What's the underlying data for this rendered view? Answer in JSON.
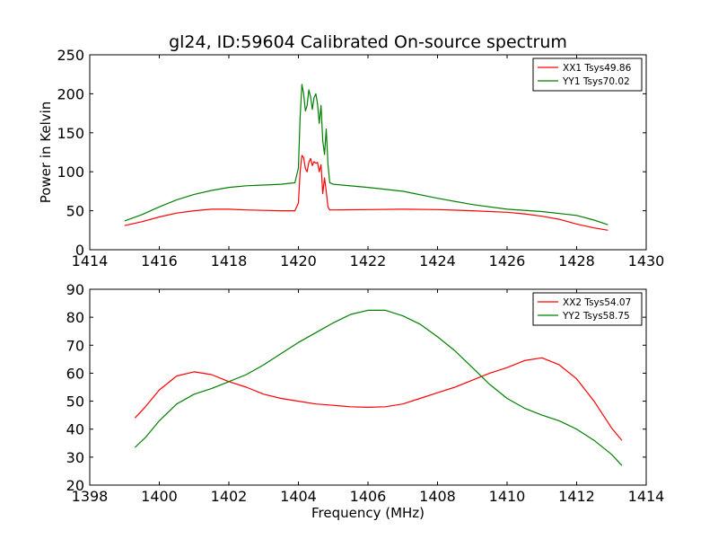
{
  "figure": {
    "title": "gl24, ID:59604 Calibrated On-source spectrum"
  },
  "chart_data": [
    {
      "type": "line",
      "title": "gl24, ID:59604 Calibrated On-source spectrum",
      "xlabel": "",
      "ylabel": "Power in Kelvin",
      "xlim": [
        1414,
        1430
      ],
      "ylim": [
        0,
        250
      ],
      "xticks": [
        1414,
        1416,
        1418,
        1420,
        1422,
        1424,
        1426,
        1428,
        1430
      ],
      "yticks": [
        0,
        50,
        100,
        150,
        200,
        250
      ],
      "legend_position": "top-right",
      "grid": false,
      "series": [
        {
          "name": "XX1 Tsys49.86",
          "color": "#ff0000",
          "points": [
            [
              1415,
              31
            ],
            [
              1415.5,
              36
            ],
            [
              1416,
              42
            ],
            [
              1416.5,
              47
            ],
            [
              1417,
              50
            ],
            [
              1417.5,
              52
            ],
            [
              1418,
              52
            ],
            [
              1418.5,
              51
            ],
            [
              1419,
              50.5
            ],
            [
              1419.5,
              50
            ],
            [
              1419.9,
              50
            ],
            [
              1420.0,
              60
            ],
            [
              1420.05,
              100
            ],
            [
              1420.1,
              121
            ],
            [
              1420.15,
              118
            ],
            [
              1420.2,
              104
            ],
            [
              1420.25,
              100
            ],
            [
              1420.3,
              112
            ],
            [
              1420.35,
              117
            ],
            [
              1420.4,
              108
            ],
            [
              1420.45,
              113
            ],
            [
              1420.5,
              111
            ],
            [
              1420.55,
              112
            ],
            [
              1420.6,
              100
            ],
            [
              1420.65,
              109
            ],
            [
              1420.7,
              72
            ],
            [
              1420.75,
              92
            ],
            [
              1420.8,
              75
            ],
            [
              1420.85,
              55
            ],
            [
              1420.9,
              51
            ],
            [
              1421,
              51
            ],
            [
              1422,
              51.5
            ],
            [
              1423,
              52
            ],
            [
              1424,
              51.5
            ],
            [
              1425,
              50
            ],
            [
              1426,
              48
            ],
            [
              1426.5,
              46
            ],
            [
              1427,
              43
            ],
            [
              1427.5,
              39
            ],
            [
              1428,
              33
            ],
            [
              1428.5,
              28
            ],
            [
              1428.9,
              25
            ]
          ]
        },
        {
          "name": "YY1 Tsys70.02",
          "color": "#008000",
          "points": [
            [
              1415,
              37
            ],
            [
              1415.5,
              45
            ],
            [
              1416,
              55
            ],
            [
              1416.5,
              64
            ],
            [
              1417,
              71
            ],
            [
              1417.5,
              76
            ],
            [
              1418,
              80
            ],
            [
              1418.5,
              82
            ],
            [
              1419,
              83
            ],
            [
              1419.5,
              84
            ],
            [
              1419.9,
              86
            ],
            [
              1420.0,
              105
            ],
            [
              1420.05,
              170
            ],
            [
              1420.1,
              212
            ],
            [
              1420.15,
              200
            ],
            [
              1420.2,
              178
            ],
            [
              1420.25,
              185
            ],
            [
              1420.3,
              205
            ],
            [
              1420.35,
              196
            ],
            [
              1420.4,
              180
            ],
            [
              1420.45,
              195
            ],
            [
              1420.5,
              200
            ],
            [
              1420.55,
              187
            ],
            [
              1420.6,
              162
            ],
            [
              1420.65,
              185
            ],
            [
              1420.7,
              140
            ],
            [
              1420.75,
              122
            ],
            [
              1420.8,
              155
            ],
            [
              1420.85,
              110
            ],
            [
              1420.9,
              86
            ],
            [
              1421,
              84
            ],
            [
              1422,
              80
            ],
            [
              1423,
              75
            ],
            [
              1424,
              66
            ],
            [
              1425,
              58
            ],
            [
              1426,
              52
            ],
            [
              1427,
              49
            ],
            [
              1428,
              44
            ],
            [
              1428.5,
              38
            ],
            [
              1428.9,
              32
            ]
          ]
        }
      ]
    },
    {
      "type": "line",
      "title": "",
      "xlabel": "Frequency (MHz)",
      "ylabel": "",
      "xlim": [
        1398,
        1414
      ],
      "ylim": [
        20,
        90
      ],
      "xticks": [
        1398,
        1400,
        1402,
        1404,
        1406,
        1408,
        1410,
        1412,
        1414
      ],
      "yticks": [
        20,
        30,
        40,
        50,
        60,
        70,
        80,
        90
      ],
      "legend_position": "top-right",
      "grid": false,
      "series": [
        {
          "name": "XX2 Tsys54.07",
          "color": "#ff0000",
          "points": [
            [
              1399.3,
              44
            ],
            [
              1399.6,
              48
            ],
            [
              1400,
              54
            ],
            [
              1400.5,
              59
            ],
            [
              1401,
              60.5
            ],
            [
              1401.5,
              59.5
            ],
            [
              1402,
              57
            ],
            [
              1402.5,
              55
            ],
            [
              1403,
              52.5
            ],
            [
              1403.5,
              51
            ],
            [
              1404,
              50
            ],
            [
              1404.5,
              49
            ],
            [
              1405,
              48.5
            ],
            [
              1405.5,
              48
            ],
            [
              1406,
              47.8
            ],
            [
              1406.5,
              48
            ],
            [
              1407,
              49
            ],
            [
              1407.5,
              51
            ],
            [
              1408,
              53
            ],
            [
              1408.5,
              55
            ],
            [
              1409,
              57.5
            ],
            [
              1409.5,
              60
            ],
            [
              1410,
              62
            ],
            [
              1410.5,
              64.5
            ],
            [
              1411,
              65.5
            ],
            [
              1411.5,
              63
            ],
            [
              1412,
              58
            ],
            [
              1412.5,
              50
            ],
            [
              1413,
              40.5
            ],
            [
              1413.3,
              36
            ]
          ]
        },
        {
          "name": "YY2 Tsys58.75",
          "color": "#008000",
          "points": [
            [
              1399.3,
              33.5
            ],
            [
              1399.6,
              37
            ],
            [
              1400,
              43
            ],
            [
              1400.5,
              49
            ],
            [
              1401,
              52.5
            ],
            [
              1401.5,
              54.5
            ],
            [
              1402,
              57
            ],
            [
              1402.5,
              59.5
            ],
            [
              1403,
              63
            ],
            [
              1403.5,
              67
            ],
            [
              1404,
              71
            ],
            [
              1404.5,
              74.5
            ],
            [
              1405,
              78
            ],
            [
              1405.5,
              81
            ],
            [
              1406,
              82.5
            ],
            [
              1406.5,
              82.5
            ],
            [
              1407,
              80.5
            ],
            [
              1407.5,
              77.5
            ],
            [
              1408,
              73
            ],
            [
              1408.5,
              68
            ],
            [
              1409,
              62
            ],
            [
              1409.5,
              56
            ],
            [
              1410,
              51
            ],
            [
              1410.5,
              47.5
            ],
            [
              1411,
              45
            ],
            [
              1411.5,
              43
            ],
            [
              1412,
              40
            ],
            [
              1412.5,
              36
            ],
            [
              1413,
              31
            ],
            [
              1413.3,
              27
            ]
          ]
        }
      ]
    }
  ]
}
